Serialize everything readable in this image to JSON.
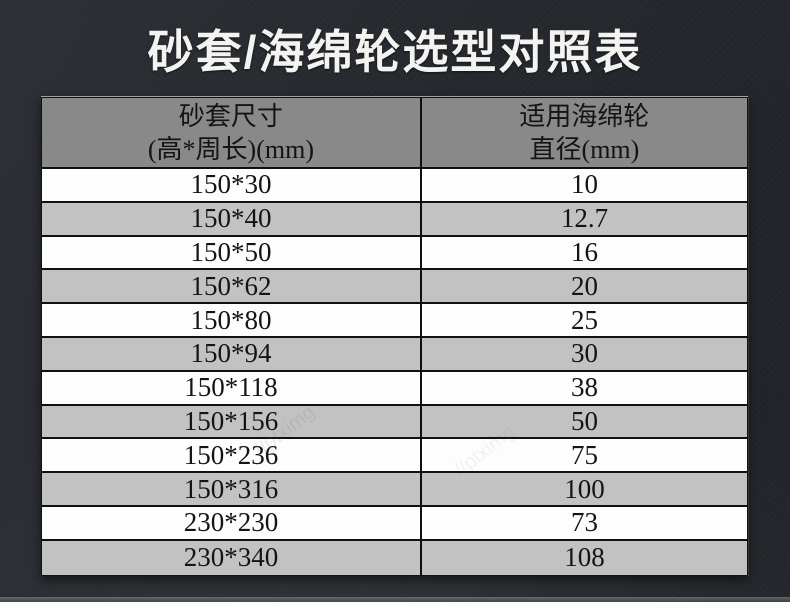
{
  "title": "砂套/海绵轮选型对照表",
  "chart_data": {
    "type": "table",
    "title": "砂套/海绵轮选型对照表",
    "columns": [
      {
        "label_line1": "砂套尺寸",
        "label_line2": "(高*周长)(mm)"
      },
      {
        "label_line1": "适用海绵轮",
        "label_line2": "直径(mm)"
      }
    ],
    "rows": [
      {
        "size": "150*30",
        "diameter": "10"
      },
      {
        "size": "150*40",
        "diameter": "12.7"
      },
      {
        "size": "150*50",
        "diameter": "16"
      },
      {
        "size": "150*62",
        "diameter": "20"
      },
      {
        "size": "150*80",
        "diameter": "25"
      },
      {
        "size": "150*94",
        "diameter": "30"
      },
      {
        "size": "150*118",
        "diameter": "38"
      },
      {
        "size": "150*156",
        "diameter": "50"
      },
      {
        "size": "150*236",
        "diameter": "75"
      },
      {
        "size": "150*316",
        "diameter": "100"
      },
      {
        "size": "230*230",
        "diameter": "73"
      },
      {
        "size": "230*340",
        "diameter": "108"
      }
    ]
  },
  "watermark": {
    "text": "//ptximg"
  },
  "colors": {
    "page_background": "#26292e",
    "title_text": "#f3f3f1",
    "header_background": "#898989",
    "row_background": "#fdfdfd",
    "row_alt_background": "#c2c2c2",
    "grid_line": "#101010",
    "cell_text": "#141414"
  }
}
